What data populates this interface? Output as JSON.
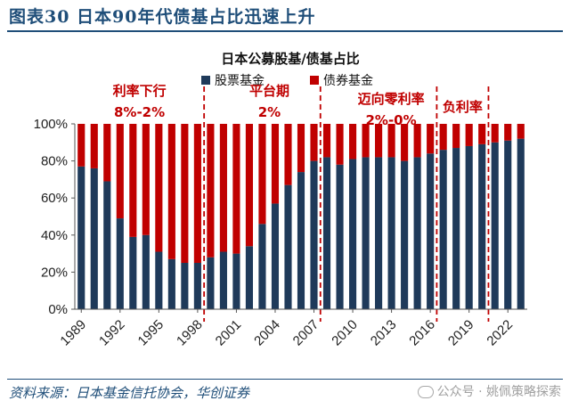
{
  "figure": {
    "title": "图表30  日本90年代债基占比迅速上升",
    "source": "资料来源：日本基金信托协会，华创证券",
    "watermark": "公众号 · 姚佩策略探索"
  },
  "chart_data": {
    "type": "bar",
    "stacked": true,
    "title": "日本公募股基/债基占比",
    "categories": [
      "1989",
      "1990",
      "1991",
      "1992",
      "1993",
      "1994",
      "1995",
      "1996",
      "1997",
      "1998",
      "1999",
      "2000",
      "2001",
      "2002",
      "2003",
      "2004",
      "2005",
      "2006",
      "2007",
      "2008",
      "2009",
      "2010",
      "2011",
      "2012",
      "2013",
      "2014",
      "2015",
      "2016",
      "2017",
      "2018",
      "2019",
      "2020",
      "2021",
      "2022",
      "2023"
    ],
    "tick_labels": [
      "1989",
      "1992",
      "1995",
      "1998",
      "2001",
      "2004",
      "2007",
      "2010",
      "2013",
      "2016",
      "2019",
      "2022"
    ],
    "series": [
      {
        "name": "股票基金",
        "color": "#1f3a5a",
        "values": [
          77,
          76,
          69,
          49,
          39,
          40,
          31,
          27,
          25,
          25,
          28,
          31,
          30,
          34,
          46,
          57,
          67,
          74,
          80,
          82,
          78,
          81,
          82,
          82,
          82,
          80,
          82,
          84,
          86,
          87,
          88,
          89,
          90,
          91,
          92
        ]
      },
      {
        "name": "债券基金",
        "color": "#c00000",
        "values": [
          23,
          24,
          31,
          51,
          61,
          60,
          69,
          73,
          75,
          75,
          72,
          69,
          70,
          66,
          54,
          43,
          33,
          26,
          20,
          18,
          22,
          19,
          18,
          18,
          18,
          20,
          18,
          16,
          14,
          13,
          12,
          11,
          10,
          9,
          8
        ]
      }
    ],
    "ylim": [
      0,
      100
    ],
    "yticks": [
      0,
      20,
      40,
      60,
      80,
      100
    ],
    "ytick_labels": [
      "0%",
      "20%",
      "40%",
      "60%",
      "80%",
      "100%"
    ],
    "dividers_after_index": [
      9,
      18,
      27,
      31
    ],
    "annotations": [
      {
        "label": "利率下行",
        "value": "8%-2%"
      },
      {
        "label": "平台期",
        "value": "2%"
      },
      {
        "label": "迈向零利率",
        "value": "2%-0%"
      },
      {
        "label": "负利率",
        "value": ""
      }
    ],
    "annotation_color": "#c00000",
    "legend_position": "top-center"
  }
}
